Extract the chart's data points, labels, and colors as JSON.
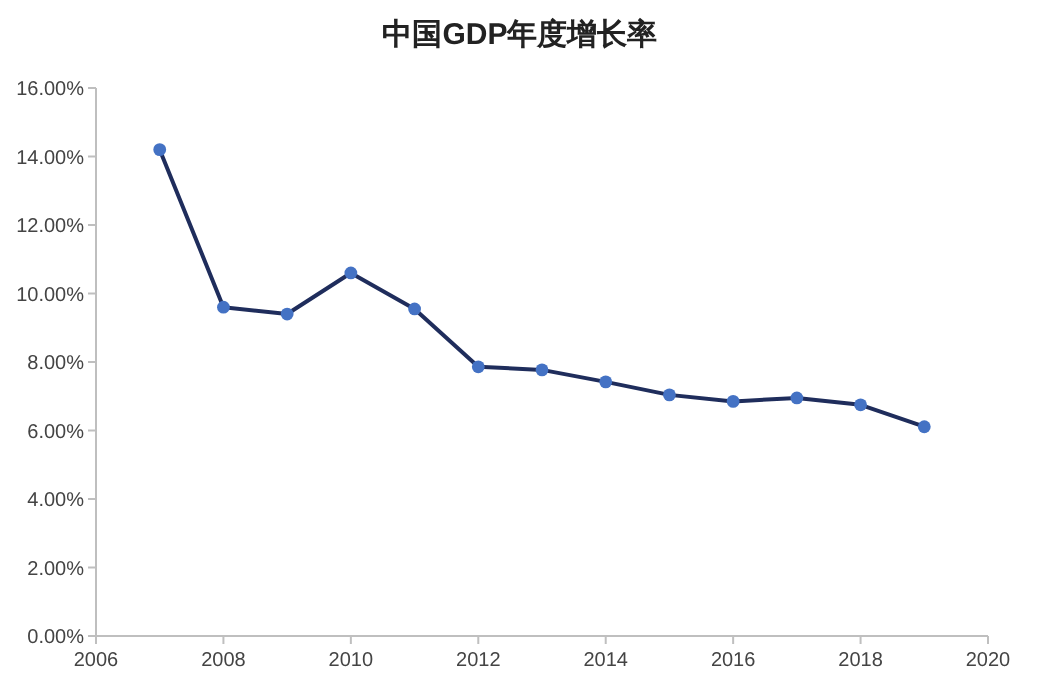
{
  "chart_data": {
    "type": "line",
    "title": "中国GDP年度增长率",
    "x": [
      2007,
      2008,
      2009,
      2010,
      2011,
      2012,
      2013,
      2014,
      2015,
      2016,
      2017,
      2018,
      2019
    ],
    "series": [
      {
        "color": "#1f2d5c",
        "values": [
          14.2,
          9.6,
          9.4,
          10.6,
          9.55,
          7.86,
          7.77,
          7.42,
          7.04,
          6.85,
          6.95,
          6.75,
          6.11
        ]
      }
    ],
    "marker": "circle",
    "line_style": "solid",
    "grid": false,
    "xlim": [
      2006,
      2020
    ],
    "xticks": [
      2006,
      2008,
      2010,
      2012,
      2014,
      2016,
      2018,
      2020
    ],
    "ylim": [
      0,
      16
    ],
    "yticks": [
      {
        "value": 0,
        "label": "0.00%"
      },
      {
        "value": 2,
        "label": "2.00%"
      },
      {
        "value": 4,
        "label": "4.00%"
      },
      {
        "value": 6,
        "label": "6.00%"
      },
      {
        "value": 8,
        "label": "8.00%"
      },
      {
        "value": 10,
        "label": "10.00%"
      },
      {
        "value": 12,
        "label": "12.00%"
      },
      {
        "value": 14,
        "label": "14.00%"
      },
      {
        "value": 16,
        "label": "16.00%"
      }
    ]
  }
}
